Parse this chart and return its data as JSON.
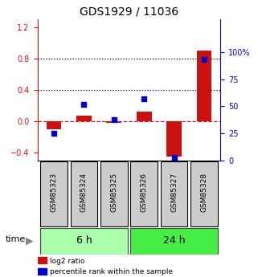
{
  "title": "GDS1929 / 11036",
  "samples": [
    "GSM85323",
    "GSM85324",
    "GSM85325",
    "GSM85326",
    "GSM85327",
    "GSM85328"
  ],
  "log2_ratio": [
    -0.1,
    0.07,
    -0.02,
    0.12,
    -0.45,
    0.9
  ],
  "percentile_rank": [
    25,
    52,
    38,
    57,
    3,
    93
  ],
  "groups": [
    {
      "label": "6 h",
      "color_light": "#bbffbb",
      "color_dark": "#33cc33",
      "count": 3
    },
    {
      "label": "24 h",
      "color_light": "#55ee55",
      "color_dark": "#33cc33",
      "count": 3
    }
  ],
  "time_label": "time",
  "bar_color": "#cc1111",
  "dot_color": "#0000cc",
  "left_ylim": [
    -0.5,
    1.3
  ],
  "left_yticks": [
    -0.4,
    0.0,
    0.4,
    0.8,
    1.2
  ],
  "right_ylim": [
    0,
    130
  ],
  "right_yticks": [
    0,
    25,
    50,
    75,
    100
  ],
  "hline_y": [
    0.4,
    0.8
  ],
  "zero_line_y": 0.0,
  "legend_labels": [
    "log2 ratio",
    "percentile rank within the sample"
  ],
  "background_color": "#ffffff",
  "title_fontsize": 10,
  "bar_width": 0.5,
  "sample_box_color": "#cccccc",
  "group_6h_color": "#aaffaa",
  "group_24h_color": "#44ee44"
}
